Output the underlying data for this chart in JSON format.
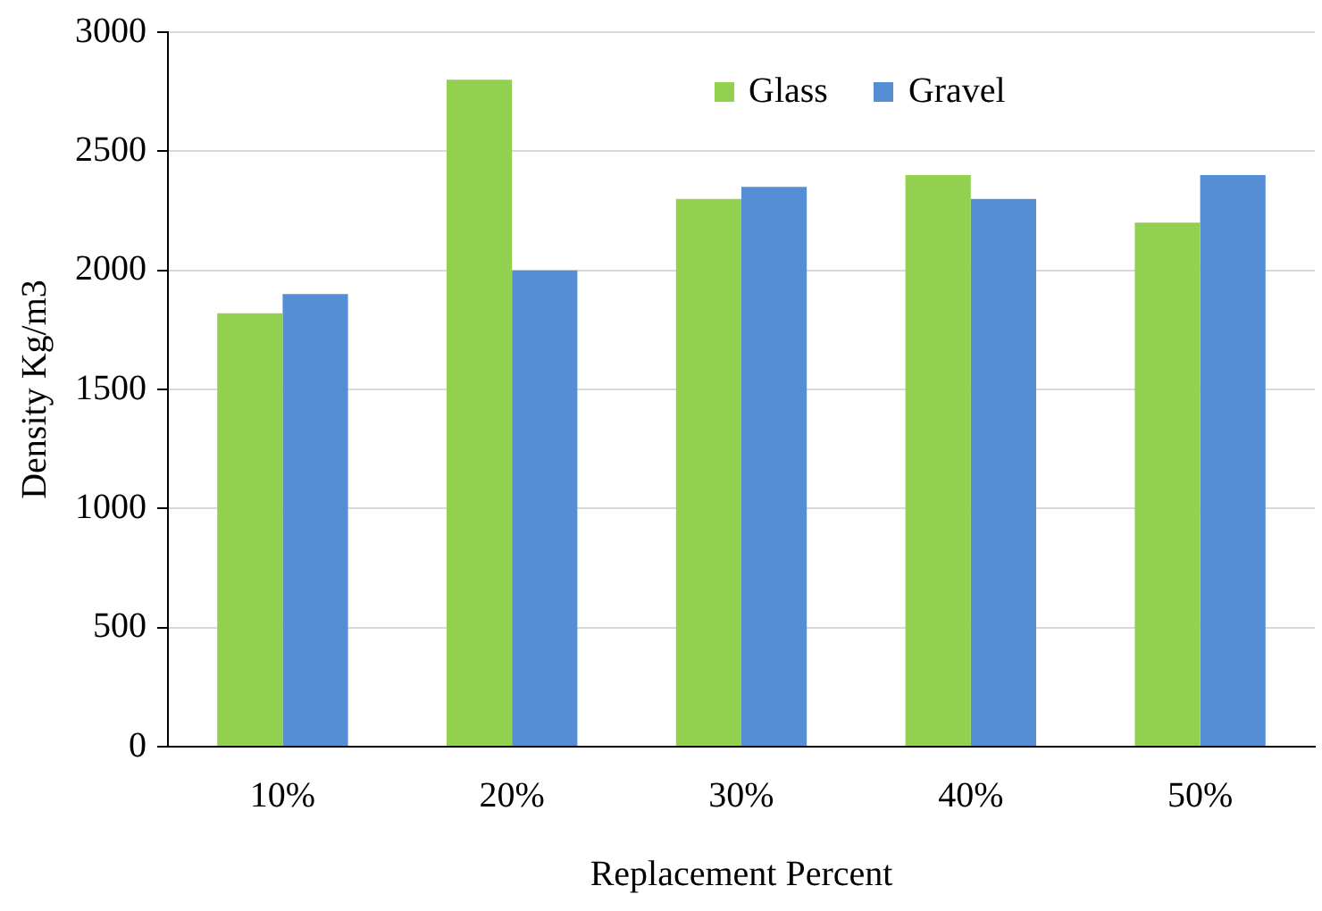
{
  "chart_data": {
    "type": "bar",
    "xlabel": "Replacement Percent",
    "ylabel": "Density Kg/m3",
    "categories": [
      "10%",
      "20%",
      "30%",
      "40%",
      "50%"
    ],
    "series": [
      {
        "name": "Glass",
        "color": "#92d050",
        "values": [
          1820,
          2800,
          2300,
          2400,
          2200
        ]
      },
      {
        "name": "Gravel",
        "color": "#558ed5",
        "values": [
          1900,
          2000,
          2350,
          2300,
          2400
        ]
      }
    ],
    "ylim": [
      0,
      3000
    ],
    "yticks": [
      0,
      500,
      1000,
      1500,
      2000,
      2500,
      3000
    ],
    "grid": "y",
    "legend": "top right"
  }
}
